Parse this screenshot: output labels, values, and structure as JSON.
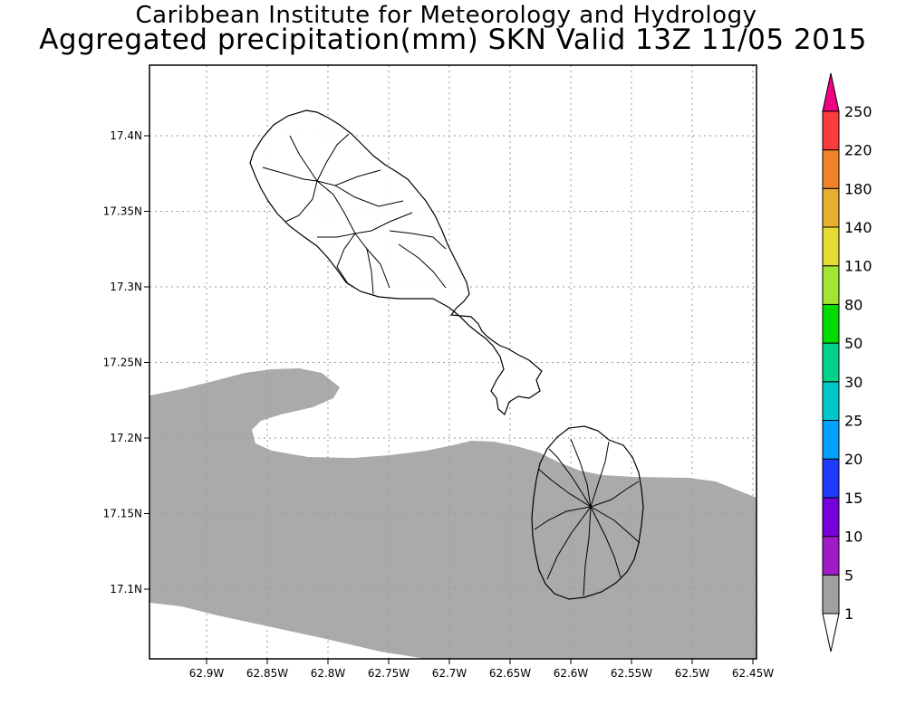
{
  "header": {
    "title": "Caribbean Institute for Meteorology and Hydrology",
    "subtitle": "Aggregated precipitation(mm) SKN Valid 13Z 11/05 2015"
  },
  "map": {
    "lon_ticks": [
      "62.9W",
      "62.85W",
      "62.8W",
      "62.75W",
      "62.7W",
      "62.65W",
      "62.6W",
      "62.55W",
      "62.5W",
      "62.45W"
    ],
    "lat_ticks": [
      "17.4N",
      "17.35N",
      "17.3N",
      "17.25N",
      "17.2N",
      "17.15N",
      "17.1N"
    ],
    "grid": true,
    "precip_fill_color": "#aaaaaa",
    "islands": [
      "St. Kitts",
      "Nevis"
    ]
  },
  "legend": {
    "position": "right",
    "bins": [
      {
        "label": "1",
        "color": "#ffffff"
      },
      {
        "label": "5",
        "color": "#a0a0a0"
      },
      {
        "label": "10",
        "color": "#a01ac8"
      },
      {
        "label": "15",
        "color": "#7800dc"
      },
      {
        "label": "20",
        "color": "#1e3cff"
      },
      {
        "label": "25",
        "color": "#00a0ff"
      },
      {
        "label": "30",
        "color": "#00c8c8"
      },
      {
        "label": "50",
        "color": "#00d28c"
      },
      {
        "label": "80",
        "color": "#00dc00"
      },
      {
        "label": "110",
        "color": "#a0e632"
      },
      {
        "label": "140",
        "color": "#e6dc32"
      },
      {
        "label": "180",
        "color": "#e6af2d"
      },
      {
        "label": "220",
        "color": "#f08228"
      },
      {
        "label": "250",
        "color": "#fa3c3c"
      }
    ],
    "top_arrow_color": "#f00082",
    "bottom_arrow_color": "#ffffff"
  }
}
